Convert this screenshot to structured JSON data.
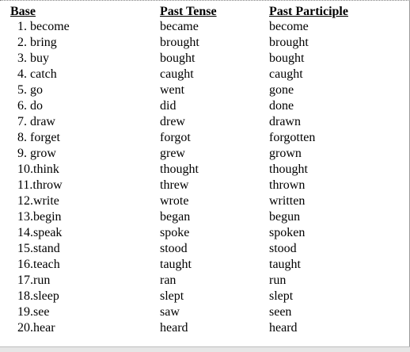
{
  "headers": [
    "Base",
    "Past Tense",
    "Past Participle"
  ],
  "rows": [
    [
      "1.  become",
      "became",
      "become"
    ],
    [
      "2.  bring",
      "brought",
      "brought"
    ],
    [
      "3.  buy",
      "bought",
      "bought"
    ],
    [
      "4.  catch",
      "caught",
      "caught"
    ],
    [
      "5.  go",
      "went",
      "gone"
    ],
    [
      "6.  do",
      "did",
      "done"
    ],
    [
      "7.  draw",
      "drew",
      "drawn"
    ],
    [
      "8.  forget",
      "forgot",
      "forgotten"
    ],
    [
      "9.  grow",
      "grew",
      "grown"
    ],
    [
      "10.think",
      "thought",
      "thought"
    ],
    [
      "11.throw",
      "threw",
      "thrown"
    ],
    [
      "12.write",
      "wrote",
      "written"
    ],
    [
      "13.begin",
      "began",
      "begun"
    ],
    [
      "14.speak",
      "spoke",
      "spoken"
    ],
    [
      "15.stand",
      "stood",
      "stood"
    ],
    [
      "16.teach",
      "taught",
      "taught"
    ],
    [
      "17.run",
      "ran",
      "run"
    ],
    [
      "18.sleep",
      "slept",
      "slept"
    ],
    [
      "19.see",
      "saw",
      "seen"
    ],
    [
      "20.hear",
      "heard",
      "heard"
    ]
  ]
}
